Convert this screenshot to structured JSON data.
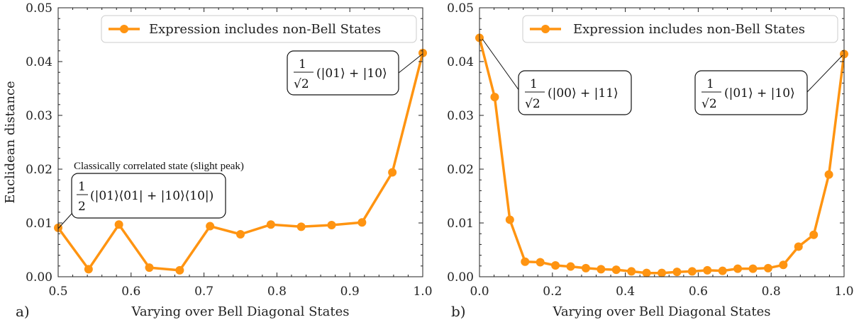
{
  "accent_color": "#ff9411",
  "chart_data": [
    {
      "type": "line",
      "panel_label": "a)",
      "xlabel": "Varying over Bell Diagonal States",
      "ylabel": "Euclidean distance",
      "xlim": [
        0.5,
        1.0
      ],
      "ylim": [
        0.0,
        0.05
      ],
      "xticks": [
        "0.5",
        "0.6",
        "0.7",
        "0.8",
        "0.9",
        "1.0"
      ],
      "yticks": [
        "0.00",
        "0.01",
        "0.02",
        "0.03",
        "0.04",
        "0.05"
      ],
      "legend": {
        "label": "Expression includes non-Bell States",
        "placement": "top-right"
      },
      "series": [
        {
          "name": "Expression includes non-Bell States",
          "x": [
            0.5,
            0.5417,
            0.5833,
            0.625,
            0.6667,
            0.7083,
            0.75,
            0.7917,
            0.8333,
            0.875,
            0.9167,
            0.9583,
            1.0
          ],
          "y": [
            0.0091,
            0.0014,
            0.0097,
            0.0017,
            0.0012,
            0.0094,
            0.0079,
            0.0097,
            0.0093,
            0.0096,
            0.0101,
            0.0194,
            0.0416
          ]
        }
      ],
      "annotations": {
        "right": {
          "num": "1",
          "den": "√2",
          "tail": "(|01⟩ + |10⟩"
        },
        "left_title": "Classically correlated state (slight peak)",
        "left": {
          "num": "1",
          "den": "2",
          "tail": "(|01⟩⟨01| + |10⟩⟨10|)"
        }
      }
    },
    {
      "type": "line",
      "panel_label": "b)",
      "xlabel": "Varying over Bell Diagonal States",
      "ylabel": "",
      "xlim": [
        0.0,
        1.0
      ],
      "ylim": [
        0.0,
        0.05
      ],
      "xticks": [
        "0.0",
        "0.2",
        "0.4",
        "0.6",
        "0.8",
        "1.0"
      ],
      "yticks": [
        "0.00",
        "0.01",
        "0.02",
        "0.03",
        "0.04",
        "0.05"
      ],
      "legend": {
        "label": "Expression includes non-Bell States",
        "placement": "top-right"
      },
      "series": [
        {
          "name": "Expression includes non-Bell States",
          "x": [
            0.0,
            0.0417,
            0.0833,
            0.125,
            0.1667,
            0.2083,
            0.25,
            0.2917,
            0.3333,
            0.375,
            0.4167,
            0.4583,
            0.5,
            0.5417,
            0.5833,
            0.625,
            0.6667,
            0.7083,
            0.75,
            0.7917,
            0.8333,
            0.875,
            0.9167,
            0.9583,
            1.0
          ],
          "y": [
            0.0444,
            0.0334,
            0.0106,
            0.0028,
            0.0027,
            0.0021,
            0.0019,
            0.0016,
            0.0014,
            0.0013,
            0.001,
            0.0007,
            0.0007,
            0.0009,
            0.001,
            0.0012,
            0.0011,
            0.0015,
            0.0015,
            0.0016,
            0.0022,
            0.0056,
            0.0078,
            0.019,
            0.0414
          ]
        }
      ],
      "annotations": {
        "left": {
          "num": "1",
          "den": "√2",
          "tail": "(|00⟩ + |11⟩"
        },
        "right": {
          "num": "1",
          "den": "√2",
          "tail": "(|01⟩ + |10⟩"
        }
      }
    }
  ]
}
